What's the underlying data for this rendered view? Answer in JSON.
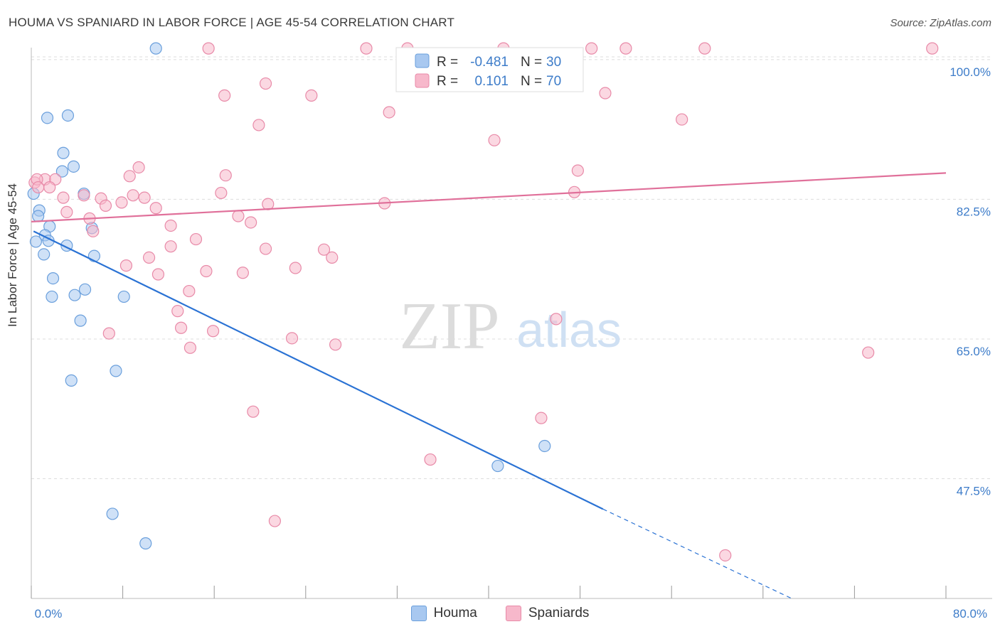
{
  "title": "HOUMA VS SPANIARD IN LABOR FORCE | AGE 45-54 CORRELATION CHART",
  "source": "Source: ZipAtlas.com",
  "watermark": {
    "zip": "ZIP",
    "atlas": "atlas"
  },
  "colors": {
    "houma_fill": "#a8c8f0",
    "houma_stroke": "#6a9fdc",
    "houma_line": "#2a72d4",
    "spaniards_fill": "#f7b8cb",
    "spaniards_stroke": "#e88aa8",
    "spaniards_line": "#e0709a",
    "axis_label": "#3d7cc9",
    "grid": "#dddddd"
  },
  "legend": {
    "houma": {
      "r_label": "R =",
      "r_value": "-0.481",
      "n_label": "N =",
      "n_value": "30"
    },
    "spaniards": {
      "r_label": "R =",
      "r_value": "0.101",
      "n_label": "N =",
      "n_value": "70"
    }
  },
  "bottom_legend": [
    "Houma",
    "Spaniards"
  ],
  "chart_data": {
    "type": "scatter",
    "title": "HOUMA VS SPANIARD IN LABOR FORCE | AGE 45-54 CORRELATION CHART",
    "xlabel": "",
    "ylabel": "In Labor Force | Age 45-54",
    "xlim": [
      0,
      80
    ],
    "ylim": [
      32.5,
      101.5
    ],
    "x_tick_labels": [
      "0.0%",
      "80.0%"
    ],
    "y_ticks": [
      47.5,
      65.0,
      82.5,
      100.0
    ],
    "y_tick_labels": [
      "47.5%",
      "65.0%",
      "82.5%",
      "100.0%"
    ],
    "grid": true,
    "series": [
      {
        "name": "Houma",
        "points": [
          [
            10.9,
            101.4
          ],
          [
            3.2,
            93.0
          ],
          [
            1.4,
            92.7
          ],
          [
            2.8,
            88.3
          ],
          [
            3.7,
            86.6
          ],
          [
            2.7,
            86.0
          ],
          [
            0.2,
            83.2
          ],
          [
            4.6,
            83.2
          ],
          [
            0.7,
            81.1
          ],
          [
            0.6,
            80.4
          ],
          [
            1.6,
            79.1
          ],
          [
            5.3,
            78.9
          ],
          [
            1.2,
            78.0
          ],
          [
            1.5,
            77.3
          ],
          [
            0.4,
            77.2
          ],
          [
            3.1,
            76.7
          ],
          [
            1.1,
            75.6
          ],
          [
            5.5,
            75.4
          ],
          [
            1.9,
            72.6
          ],
          [
            4.7,
            71.2
          ],
          [
            1.8,
            70.3
          ],
          [
            3.8,
            70.5
          ],
          [
            8.1,
            70.3
          ],
          [
            4.3,
            67.3
          ],
          [
            7.4,
            61.0
          ],
          [
            3.5,
            59.8
          ],
          [
            44.9,
            51.6
          ],
          [
            40.8,
            49.1
          ],
          [
            7.1,
            43.1
          ],
          [
            10.0,
            39.4
          ]
        ],
        "trend": {
          "x0": 0.2,
          "y0": 78.5,
          "x1": 50.0,
          "y1": 43.7,
          "dash_to_x": 66.5,
          "dash_to_y": 32.5
        }
      },
      {
        "name": "Spaniards",
        "points": [
          [
            15.5,
            101.4
          ],
          [
            29.3,
            101.4
          ],
          [
            32.9,
            101.4
          ],
          [
            41.3,
            101.4
          ],
          [
            49.0,
            101.4
          ],
          [
            52.0,
            101.4
          ],
          [
            58.9,
            101.4
          ],
          [
            78.8,
            101.4
          ],
          [
            20.5,
            97.0
          ],
          [
            16.9,
            95.5
          ],
          [
            24.5,
            95.5
          ],
          [
            50.2,
            95.8
          ],
          [
            31.3,
            93.4
          ],
          [
            19.9,
            91.8
          ],
          [
            56.9,
            92.5
          ],
          [
            40.5,
            89.9
          ],
          [
            9.4,
            86.5
          ],
          [
            17.0,
            85.5
          ],
          [
            8.6,
            85.4
          ],
          [
            47.8,
            86.1
          ],
          [
            1.2,
            85.0
          ],
          [
            2.1,
            85.0
          ],
          [
            0.3,
            84.6
          ],
          [
            0.5,
            85.0
          ],
          [
            0.6,
            84.0
          ],
          [
            1.6,
            84.0
          ],
          [
            47.5,
            83.4
          ],
          [
            2.8,
            82.7
          ],
          [
            4.6,
            83.0
          ],
          [
            6.1,
            82.6
          ],
          [
            8.9,
            83.0
          ],
          [
            9.9,
            82.7
          ],
          [
            16.6,
            83.3
          ],
          [
            3.1,
            80.9
          ],
          [
            6.5,
            81.7
          ],
          [
            7.9,
            82.1
          ],
          [
            10.9,
            81.4
          ],
          [
            20.7,
            81.9
          ],
          [
            30.9,
            82.0
          ],
          [
            18.1,
            80.4
          ],
          [
            19.2,
            79.6
          ],
          [
            5.1,
            80.1
          ],
          [
            12.2,
            79.2
          ],
          [
            5.4,
            78.5
          ],
          [
            14.4,
            77.5
          ],
          [
            12.2,
            76.6
          ],
          [
            20.5,
            76.3
          ],
          [
            25.6,
            76.2
          ],
          [
            10.3,
            75.2
          ],
          [
            26.3,
            75.2
          ],
          [
            8.3,
            74.2
          ],
          [
            15.3,
            73.5
          ],
          [
            23.1,
            73.9
          ],
          [
            18.5,
            73.3
          ],
          [
            11.1,
            73.1
          ],
          [
            13.8,
            71.0
          ],
          [
            12.8,
            68.5
          ],
          [
            45.9,
            67.5
          ],
          [
            13.1,
            66.4
          ],
          [
            15.9,
            66.0
          ],
          [
            22.8,
            65.1
          ],
          [
            6.8,
            65.7
          ],
          [
            26.6,
            64.3
          ],
          [
            13.9,
            63.9
          ],
          [
            73.2,
            63.3
          ],
          [
            19.4,
            55.9
          ],
          [
            44.6,
            55.1
          ],
          [
            34.9,
            49.9
          ],
          [
            21.3,
            42.2
          ],
          [
            60.7,
            37.9
          ]
        ],
        "trend": {
          "x0": 0.0,
          "y0": 79.7,
          "x1": 80.0,
          "y1": 85.8
        }
      }
    ]
  }
}
